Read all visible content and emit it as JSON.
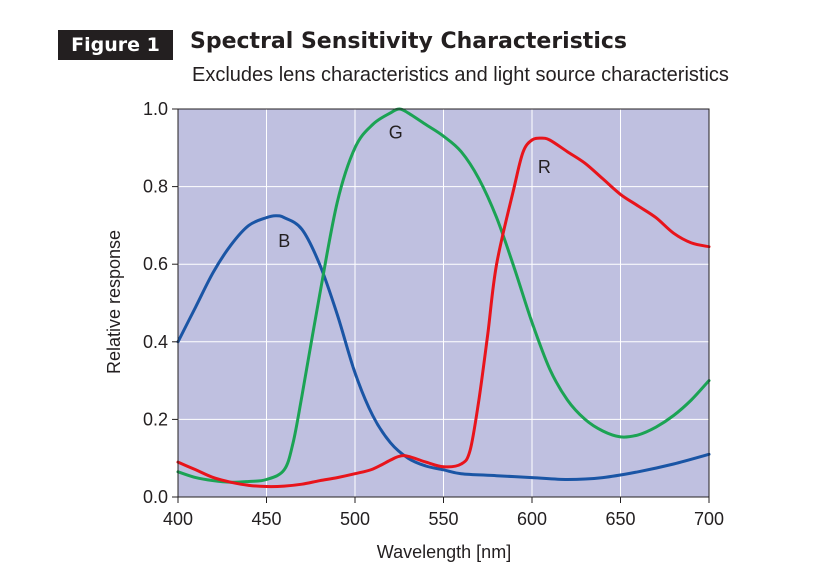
{
  "figure": {
    "badge": "Figure 1",
    "title": "Spectral Sensitivity Characteristics",
    "subtitle": "Excludes lens characteristics and light source characteristics"
  },
  "chart_data": {
    "type": "line",
    "xlabel": "Wavelength [nm]",
    "ylabel": "Relative response",
    "xlim": [
      400,
      700
    ],
    "ylim": [
      0,
      1.0
    ],
    "x_ticks": [
      400,
      450,
      500,
      550,
      600,
      650,
      700
    ],
    "y_ticks": [
      0.0,
      0.2,
      0.4,
      0.6,
      0.8,
      1.0
    ],
    "x_tick_labels": [
      "400",
      "450",
      "500",
      "550",
      "600",
      "650",
      "700"
    ],
    "y_tick_labels": [
      "0.0",
      "0.2",
      "0.4",
      "0.6",
      "0.8",
      "1.0"
    ],
    "grid": true,
    "plot_background": "#bfc0e0",
    "grid_color": "#ffffff",
    "series": [
      {
        "name": "B",
        "color": "#1a55a5",
        "label_at": [
          460,
          0.66
        ],
        "points": [
          [
            400,
            0.4
          ],
          [
            410,
            0.49
          ],
          [
            420,
            0.58
          ],
          [
            430,
            0.65
          ],
          [
            440,
            0.7
          ],
          [
            450,
            0.72
          ],
          [
            455,
            0.725
          ],
          [
            460,
            0.72
          ],
          [
            470,
            0.69
          ],
          [
            480,
            0.6
          ],
          [
            490,
            0.47
          ],
          [
            500,
            0.32
          ],
          [
            510,
            0.21
          ],
          [
            520,
            0.14
          ],
          [
            530,
            0.1
          ],
          [
            540,
            0.08
          ],
          [
            550,
            0.07
          ],
          [
            560,
            0.06
          ],
          [
            580,
            0.055
          ],
          [
            600,
            0.05
          ],
          [
            620,
            0.045
          ],
          [
            640,
            0.05
          ],
          [
            660,
            0.065
          ],
          [
            680,
            0.085
          ],
          [
            700,
            0.11
          ]
        ]
      },
      {
        "name": "G",
        "color": "#1ba354",
        "label_at": [
          523,
          0.94
        ],
        "points": [
          [
            400,
            0.065
          ],
          [
            410,
            0.05
          ],
          [
            420,
            0.042
          ],
          [
            430,
            0.038
          ],
          [
            440,
            0.04
          ],
          [
            450,
            0.045
          ],
          [
            460,
            0.07
          ],
          [
            465,
            0.14
          ],
          [
            470,
            0.26
          ],
          [
            480,
            0.52
          ],
          [
            490,
            0.76
          ],
          [
            500,
            0.9
          ],
          [
            510,
            0.96
          ],
          [
            520,
            0.99
          ],
          [
            525,
            1.0
          ],
          [
            530,
            0.99
          ],
          [
            540,
            0.96
          ],
          [
            550,
            0.93
          ],
          [
            560,
            0.89
          ],
          [
            570,
            0.82
          ],
          [
            580,
            0.72
          ],
          [
            590,
            0.59
          ],
          [
            600,
            0.45
          ],
          [
            610,
            0.33
          ],
          [
            620,
            0.25
          ],
          [
            630,
            0.2
          ],
          [
            640,
            0.17
          ],
          [
            650,
            0.155
          ],
          [
            660,
            0.16
          ],
          [
            670,
            0.18
          ],
          [
            680,
            0.21
          ],
          [
            690,
            0.25
          ],
          [
            700,
            0.3
          ]
        ]
      },
      {
        "name": "R",
        "color": "#e8141b",
        "label_at": [
          607,
          0.85
        ],
        "points": [
          [
            400,
            0.09
          ],
          [
            410,
            0.07
          ],
          [
            420,
            0.05
          ],
          [
            430,
            0.038
          ],
          [
            440,
            0.03
          ],
          [
            450,
            0.027
          ],
          [
            460,
            0.028
          ],
          [
            470,
            0.033
          ],
          [
            480,
            0.042
          ],
          [
            490,
            0.05
          ],
          [
            500,
            0.06
          ],
          [
            510,
            0.072
          ],
          [
            520,
            0.095
          ],
          [
            525,
            0.105
          ],
          [
            530,
            0.105
          ],
          [
            540,
            0.09
          ],
          [
            550,
            0.078
          ],
          [
            560,
            0.085
          ],
          [
            565,
            0.12
          ],
          [
            570,
            0.25
          ],
          [
            575,
            0.42
          ],
          [
            580,
            0.6
          ],
          [
            590,
            0.8
          ],
          [
            595,
            0.89
          ],
          [
            600,
            0.92
          ],
          [
            605,
            0.925
          ],
          [
            610,
            0.92
          ],
          [
            620,
            0.89
          ],
          [
            630,
            0.86
          ],
          [
            640,
            0.82
          ],
          [
            650,
            0.78
          ],
          [
            660,
            0.75
          ],
          [
            670,
            0.72
          ],
          [
            680,
            0.68
          ],
          [
            690,
            0.655
          ],
          [
            700,
            0.645
          ]
        ]
      }
    ]
  }
}
